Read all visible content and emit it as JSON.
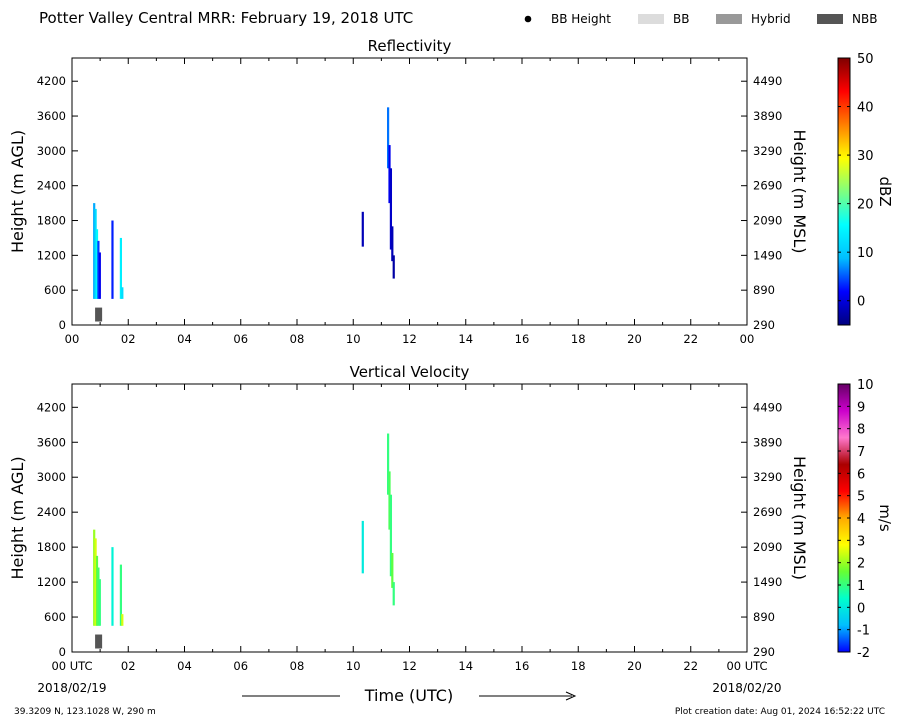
{
  "header": {
    "title": "Potter Valley Central MRR:  February 19, 2018 UTC",
    "legend": [
      {
        "label": "BB Height",
        "kind": "dot",
        "color": "#000000"
      },
      {
        "label": "BB",
        "kind": "box",
        "color": "#dcdcdc"
      },
      {
        "label": "Hybrid",
        "kind": "box",
        "color": "#999999"
      },
      {
        "label": "NBB",
        "kind": "box",
        "color": "#555555"
      }
    ]
  },
  "footer": {
    "location": "39.3209 N, 123.1028 W, 290 m",
    "created": "Plot creation date: Aug 01, 2024 16:52:22 UTC",
    "xlabel": "Time (UTC)",
    "date_start": "2018/02/19",
    "date_end": "2018/02/20",
    "first_tick": "00 UTC",
    "last_tick": "00 UTC"
  },
  "chart_data": [
    {
      "type": "heatmap",
      "title": "Reflectivity",
      "ylabel": "Height (m AGL)",
      "ylabel_right": "Height (m MSL)",
      "x_ticks": [
        "00",
        "02",
        "04",
        "06",
        "08",
        "10",
        "12",
        "14",
        "16",
        "18",
        "20",
        "22",
        "00"
      ],
      "y_ticks": [
        0,
        600,
        1200,
        1800,
        2400,
        3000,
        3600,
        4200
      ],
      "y_ticks_right": [
        290,
        890,
        1490,
        2090,
        2690,
        3290,
        3890,
        4490
      ],
      "xlim_hours": [
        0,
        24
      ],
      "ylim": [
        0,
        4600
      ],
      "colorbar": {
        "label": "dBZ",
        "range": [
          -5,
          50
        ],
        "ticks": [
          0,
          10,
          20,
          30,
          40,
          50
        ],
        "stops": [
          "#00007f",
          "#0000ff",
          "#00bfff",
          "#00ffff",
          "#7fff7f",
          "#ffff00",
          "#ff7f00",
          "#ff0000",
          "#7f0000"
        ]
      },
      "segments": [
        {
          "t": 0.75,
          "y0": 450,
          "y1": 2100,
          "v": 8
        },
        {
          "t": 0.8,
          "y0": 450,
          "y1": 2000,
          "v": 12
        },
        {
          "t": 0.85,
          "y0": 450,
          "y1": 1650,
          "v": 15
        },
        {
          "t": 0.9,
          "y0": 450,
          "y1": 1450,
          "v": 4
        },
        {
          "t": 0.95,
          "y0": 450,
          "y1": 1250,
          "v": 1
        },
        {
          "t": 1.4,
          "y0": 450,
          "y1": 1800,
          "v": 3
        },
        {
          "t": 1.7,
          "y0": 450,
          "y1": 1500,
          "v": 14
        },
        {
          "t": 1.75,
          "y0": 450,
          "y1": 650,
          "v": 12
        },
        {
          "t": 10.3,
          "y0": 1350,
          "y1": 1950,
          "v": -2
        },
        {
          "t": 11.2,
          "y0": 2700,
          "y1": 3750,
          "v": 6
        },
        {
          "t": 11.25,
          "y0": 2100,
          "y1": 3100,
          "v": 1
        },
        {
          "t": 11.3,
          "y0": 1300,
          "y1": 2700,
          "v": -1
        },
        {
          "t": 11.35,
          "y0": 1100,
          "y1": 1700,
          "v": -2
        },
        {
          "t": 11.4,
          "y0": 800,
          "y1": 1200,
          "v": -3
        }
      ],
      "bright_band": [
        {
          "t0": 0.75,
          "t1": 1.0,
          "y0": 60,
          "y1": 300,
          "type": "NBB"
        }
      ]
    },
    {
      "type": "heatmap",
      "title": "Vertical Velocity",
      "ylabel": "Height (m AGL)",
      "ylabel_right": "Height (m MSL)",
      "x_ticks": [
        "00 UTC",
        "02",
        "04",
        "06",
        "08",
        "10",
        "12",
        "14",
        "16",
        "18",
        "20",
        "22",
        "00 UTC"
      ],
      "y_ticks": [
        0,
        600,
        1200,
        1800,
        2400,
        3000,
        3600,
        4200
      ],
      "y_ticks_right": [
        290,
        890,
        1490,
        2090,
        2690,
        3290,
        3890,
        4490
      ],
      "xlim_hours": [
        0,
        24
      ],
      "ylim": [
        0,
        4600
      ],
      "colorbar": {
        "label": "m/s",
        "range": [
          -2,
          10
        ],
        "ticks": [
          -2,
          -1,
          0,
          1,
          2,
          3,
          4,
          5,
          6,
          7,
          8,
          9,
          10
        ],
        "stops": [
          "#0000ff",
          "#00bfff",
          "#00ffcc",
          "#66ff33",
          "#ffff00",
          "#ffaa00",
          "#ff0000",
          "#aa0000",
          "#ff77cc",
          "#cc00cc",
          "#660066"
        ]
      },
      "segments": [
        {
          "t": 0.75,
          "y0": 450,
          "y1": 2100,
          "v": 2
        },
        {
          "t": 0.8,
          "y0": 450,
          "y1": 1950,
          "v": 2.5
        },
        {
          "t": 0.85,
          "y0": 450,
          "y1": 1650,
          "v": 1.5
        },
        {
          "t": 0.9,
          "y0": 450,
          "y1": 1450,
          "v": 1.2
        },
        {
          "t": 0.95,
          "y0": 450,
          "y1": 1250,
          "v": 1
        },
        {
          "t": 1.4,
          "y0": 450,
          "y1": 1800,
          "v": 0.2
        },
        {
          "t": 1.7,
          "y0": 450,
          "y1": 1500,
          "v": 1
        },
        {
          "t": 1.75,
          "y0": 450,
          "y1": 650,
          "v": 2.5
        },
        {
          "t": 10.3,
          "y0": 1350,
          "y1": 2250,
          "v": 0
        },
        {
          "t": 11.2,
          "y0": 2700,
          "y1": 3750,
          "v": 1
        },
        {
          "t": 11.25,
          "y0": 2100,
          "y1": 3100,
          "v": 1.3
        },
        {
          "t": 11.3,
          "y0": 1300,
          "y1": 2700,
          "v": 1
        },
        {
          "t": 11.35,
          "y0": 1100,
          "y1": 1700,
          "v": 1.5
        },
        {
          "t": 11.4,
          "y0": 800,
          "y1": 1200,
          "v": 1
        }
      ],
      "bright_band": [
        {
          "t0": 0.75,
          "t1": 1.0,
          "y0": 60,
          "y1": 300,
          "type": "NBB"
        }
      ]
    }
  ]
}
